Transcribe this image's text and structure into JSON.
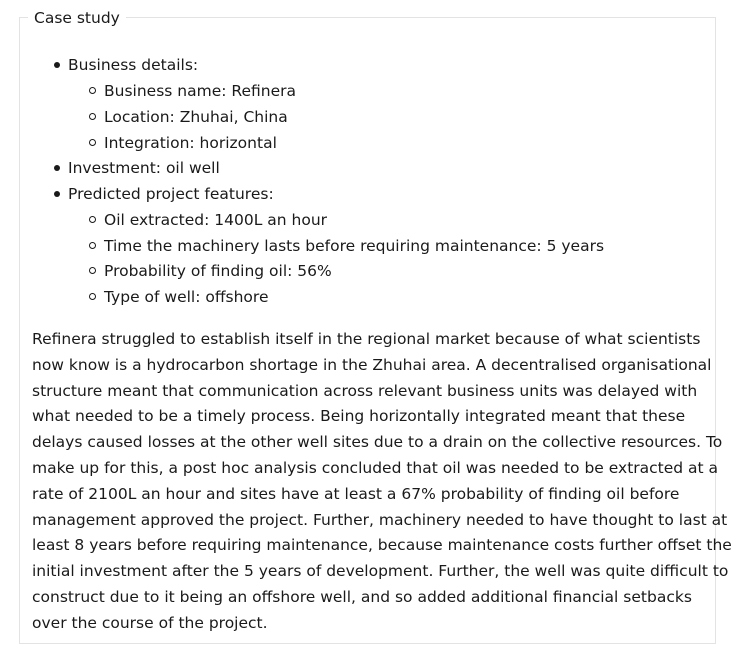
{
  "section": {
    "legend": "Case study"
  },
  "details": {
    "business_heading": "Business details:",
    "business_items": [
      "Business name: Refinera",
      "Location: Zhuhai, China",
      "Integration: horizontal"
    ],
    "investment": "Investment: oil well",
    "features_heading": "Predicted project features:",
    "feature_items": [
      "Oil extracted: 1400L an hour",
      "Time the machinery lasts before requiring maintenance: 5 years",
      "Probability of finding oil: 56%",
      "Type of well: offshore"
    ]
  },
  "narrative": {
    "lines": [
      "Refinera struggled to establish itself in the regional market because of what scientists",
      "now know is a hydrocarbon shortage in the Zhuhai area. A decentralised organisational",
      "structure meant that communication across relevant business units was delayed with",
      "what needed to be a timely process. Being horizontally integrated meant that these",
      "delays caused losses at the other well sites due to a drain on the collective resources. To",
      "make up for this, a post hoc analysis concluded that oil was needed to be extracted at a",
      "rate of 2100L an hour and sites have at least a 67% probability of finding oil before",
      "management approved the project. Further, machinery needed to have thought to last at",
      "least 8 years before requiring maintenance, because maintenance costs further offset the",
      "initial investment after the 5 years of development. Further, the well was quite difficult to",
      "construct due to it being an offshore well, and so added additional financial setbacks",
      "over the course of the project."
    ]
  }
}
